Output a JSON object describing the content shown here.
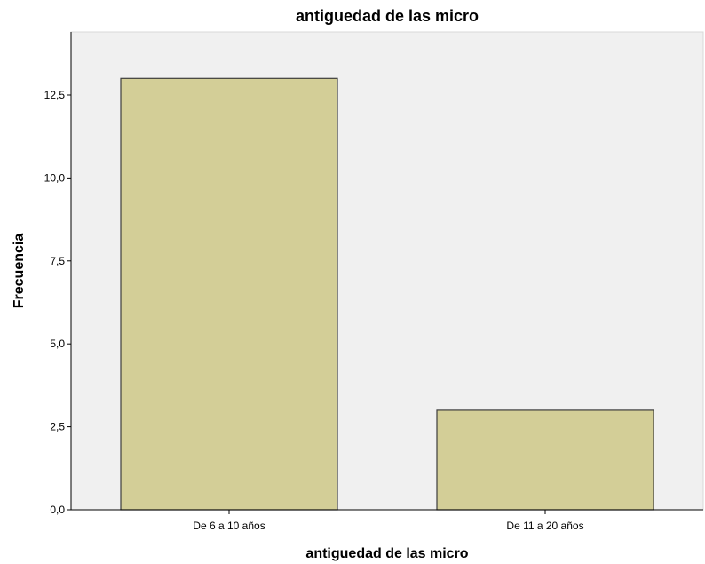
{
  "chart_data": {
    "type": "bar",
    "title": "antiguedad de las micro",
    "xlabel": "antiguedad de las micro",
    "ylabel": "Frecuencia",
    "categories": [
      "De 6 a 10 años",
      "De 11 a 20 años"
    ],
    "values": [
      13,
      3
    ],
    "ylim": [
      0,
      14.4
    ],
    "yticks": [
      {
        "value": 0,
        "label": "0,0"
      },
      {
        "value": 2.5,
        "label": "2,5"
      },
      {
        "value": 5,
        "label": "5,0"
      },
      {
        "value": 7.5,
        "label": "7,5"
      },
      {
        "value": 10,
        "label": "10,0"
      },
      {
        "value": 12.5,
        "label": "12,5"
      }
    ],
    "grid": false,
    "legend": "none",
    "colors": {
      "plot_background": "#f0f0f0",
      "bar_fill": "#d3ce97",
      "bar_stroke": "#3c3c3c",
      "axis": "#000000"
    }
  }
}
